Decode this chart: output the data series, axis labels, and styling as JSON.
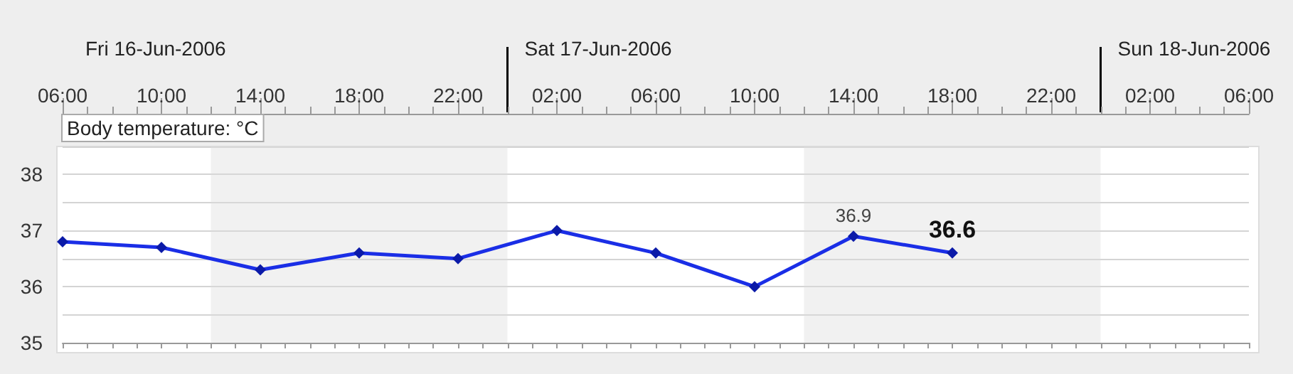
{
  "chart_data": {
    "type": "line",
    "ylabel": "Body temperature: °C",
    "annotations": [
      "Fri 16-Jun-2006"
    ],
    "x": [
      "2006-06-16T06:00",
      "2006-06-16T10:00",
      "2006-06-16T14:00",
      "2006-06-16T18:00",
      "2006-06-16T22:00",
      "2006-06-17T02:00",
      "2006-06-17T06:00",
      "2006-06-17T10:00",
      "2006-06-17T14:00",
      "2006-06-17T18:00"
    ],
    "series": [
      {
        "color": "#1a2ee6",
        "values": [
          36.8,
          36.7,
          36.3,
          36.6,
          36.5,
          37.0,
          36.6,
          36.0,
          36.9,
          36.6
        ],
        "value_labels": [
          null,
          null,
          null,
          null,
          null,
          null,
          null,
          null,
          "36.9",
          "36.6"
        ]
      }
    ],
    "xlim": [
      "2006-06-16T06:00",
      "2006-06-18T06:00"
    ],
    "xticks": [
      {
        "value": "2006-06-16T06:00",
        "label": "06:00"
      },
      {
        "value": "2006-06-16T10:00",
        "label": "10:00"
      },
      {
        "value": "2006-06-16T14:00",
        "label": "14:00"
      },
      {
        "value": "2006-06-16T18:00",
        "label": "18:00"
      },
      {
        "value": "2006-06-16T22:00",
        "label": "22:00"
      },
      {
        "value": "2006-06-17T02:00",
        "label": "02:00"
      },
      {
        "value": "2006-06-17T06:00",
        "label": "06:00"
      },
      {
        "value": "2006-06-17T10:00",
        "label": "10:00"
      },
      {
        "value": "2006-06-17T14:00",
        "label": "14:00"
      },
      {
        "value": "2006-06-17T18:00",
        "label": "18:00"
      },
      {
        "value": "2006-06-17T22:00",
        "label": "22:00"
      },
      {
        "value": "2006-06-18T02:00",
        "label": "02:00"
      },
      {
        "value": "2006-06-18T06:00",
        "label": "06:00"
      }
    ],
    "ylim": [
      35,
      38.5
    ],
    "yticks": [
      35,
      {
        "value": 35.5,
        "label": null
      },
      36,
      {
        "value": 36.5,
        "label": null
      },
      37,
      {
        "value": 37.5,
        "label": null
      },
      38
    ],
    "grid": "y",
    "marker": "diamond",
    "line_style": "solid",
    "ref_lines": [
      {
        "axis": "x",
        "value": "2006-06-17T00:00",
        "label": "Sat 17-Jun-2006",
        "color": "#000000"
      },
      {
        "axis": "x",
        "value": "2006-06-18T00:00",
        "label": "Sun 18-Jun-2006",
        "color": "#000000"
      }
    ],
    "bands": [
      {
        "axis": "x",
        "from": "2006-06-16T12:00",
        "to": "2006-06-17T00:00",
        "color": "#dcdcdc"
      },
      {
        "axis": "x",
        "from": "2006-06-17T12:00",
        "to": "2006-06-18T00:00",
        "color": "#dcdcdc"
      }
    ]
  }
}
